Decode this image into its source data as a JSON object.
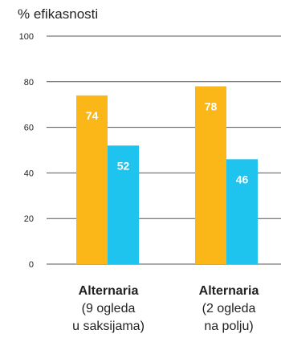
{
  "chart_data": {
    "type": "bar",
    "ylabel": "% efikasnosti",
    "ylim": [
      0,
      100
    ],
    "yticks": [
      0,
      20,
      40,
      60,
      80,
      100
    ],
    "grid": true,
    "categories": [
      {
        "title": "Alternaria",
        "line1": "(9 ogleda",
        "line2": "u saksijama)"
      },
      {
        "title": "Alternaria",
        "line1": "(2 ogleda",
        "line2": "na polju)"
      }
    ],
    "series": [
      {
        "values": [
          74,
          78
        ],
        "color": "#FBB617"
      },
      {
        "values": [
          52,
          46
        ],
        "color": "#1EC3EE"
      }
    ]
  }
}
